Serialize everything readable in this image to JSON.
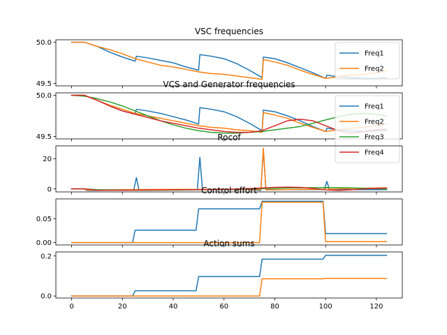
{
  "chart_data": [
    {
      "type": "line",
      "title": "VSC frequencies",
      "xlim": [
        -6.2,
        130.2
      ],
      "ylim": [
        49.47,
        50.03
      ],
      "yticks": [
        49.5,
        50.0
      ],
      "ytick_labels": [
        "49.5",
        "50.0"
      ],
      "legend": "right",
      "series": [
        {
          "name": "Freq1",
          "color": "#1f77b4",
          "x": [
            0,
            5,
            10,
            15,
            20,
            25,
            25.5,
            30,
            35,
            40,
            45,
            50,
            50.5,
            55,
            60,
            65,
            70,
            75,
            75.5,
            80,
            85,
            90,
            95,
            100,
            100.5,
            105,
            110,
            115,
            120,
            124
          ],
          "y": [
            50.0,
            50.0,
            49.95,
            49.88,
            49.82,
            49.77,
            49.83,
            49.81,
            49.78,
            49.75,
            49.7,
            49.66,
            49.85,
            49.83,
            49.8,
            49.74,
            49.66,
            49.57,
            49.82,
            49.8,
            49.75,
            49.69,
            49.63,
            49.56,
            49.6,
            49.58,
            49.57,
            49.56,
            49.56,
            49.57
          ]
        },
        {
          "name": "Freq2",
          "color": "#ff7f0e",
          "x": [
            0,
            5,
            10,
            15,
            20,
            25,
            30,
            35,
            40,
            45,
            50,
            55,
            60,
            65,
            70,
            75,
            75.5,
            80,
            85,
            90,
            95,
            100,
            105,
            110,
            115,
            120,
            124
          ],
          "y": [
            50.0,
            50.0,
            49.95,
            49.91,
            49.86,
            49.8,
            49.76,
            49.72,
            49.7,
            49.67,
            49.64,
            49.62,
            49.61,
            49.59,
            49.57,
            49.55,
            49.79,
            49.76,
            49.72,
            49.66,
            49.61,
            49.56,
            49.58,
            49.6,
            49.61,
            49.63,
            49.65
          ]
        }
      ]
    },
    {
      "type": "line",
      "title": "VCS and Generator frequencies",
      "xlim": [
        -6.2,
        130.2
      ],
      "ylim": [
        49.47,
        50.03
      ],
      "yticks": [
        49.5,
        50.0
      ],
      "ytick_labels": [
        "49.5",
        "50.0"
      ],
      "legend": "right",
      "series": [
        {
          "name": "Freq1",
          "color": "#1f77b4",
          "x": [
            0,
            5,
            10,
            15,
            20,
            25,
            25.5,
            30,
            35,
            40,
            45,
            50,
            50.5,
            55,
            60,
            65,
            70,
            75,
            75.5,
            80,
            85,
            90,
            95,
            100,
            100.5,
            105,
            110,
            115,
            120,
            124
          ],
          "y": [
            50.0,
            50.0,
            49.94,
            49.87,
            49.81,
            49.77,
            49.83,
            49.81,
            49.78,
            49.74,
            49.7,
            49.65,
            49.85,
            49.83,
            49.8,
            49.74,
            49.66,
            49.57,
            49.82,
            49.8,
            49.75,
            49.69,
            49.62,
            49.56,
            49.6,
            49.58,
            49.57,
            49.56,
            49.57,
            49.57
          ]
        },
        {
          "name": "Freq2",
          "color": "#ff7f0e",
          "x": [
            0,
            5,
            10,
            15,
            20,
            25,
            30,
            35,
            40,
            45,
            50,
            55,
            60,
            65,
            70,
            75,
            75.5,
            80,
            85,
            90,
            95,
            100,
            105,
            110,
            115,
            120,
            124
          ],
          "y": [
            50.0,
            50.0,
            49.94,
            49.88,
            49.83,
            49.78,
            49.75,
            49.72,
            49.69,
            49.66,
            49.63,
            49.61,
            49.6,
            49.58,
            49.57,
            49.55,
            49.79,
            49.76,
            49.72,
            49.66,
            49.61,
            49.56,
            49.58,
            49.6,
            49.61,
            49.63,
            49.65
          ]
        },
        {
          "name": "Freq3",
          "color": "#2ca02c",
          "x": [
            0,
            5,
            10,
            15,
            20,
            25,
            30,
            35,
            40,
            45,
            50,
            55,
            60,
            65,
            70,
            75,
            80,
            85,
            90,
            95,
            100,
            105,
            110,
            115,
            120,
            124
          ],
          "y": [
            50.0,
            49.99,
            49.96,
            49.92,
            49.87,
            49.81,
            49.75,
            49.69,
            49.64,
            49.6,
            49.57,
            49.55,
            49.54,
            49.54,
            49.55,
            49.56,
            49.58,
            49.6,
            49.62,
            49.66,
            49.7,
            49.74,
            49.77,
            49.78,
            49.77,
            49.75
          ]
        },
        {
          "name": "Freq4",
          "color": "#d62728",
          "x": [
            0,
            5,
            10,
            15,
            20,
            25,
            30,
            35,
            40,
            45,
            50,
            55,
            60,
            65,
            70,
            75,
            80,
            85,
            90,
            95,
            100,
            105,
            110,
            115,
            120,
            124
          ],
          "y": [
            50.0,
            50.0,
            49.94,
            49.87,
            49.81,
            49.77,
            49.73,
            49.69,
            49.66,
            49.63,
            49.6,
            49.58,
            49.56,
            49.55,
            49.55,
            49.57,
            49.63,
            49.69,
            49.71,
            49.69,
            49.63,
            49.57,
            49.54,
            49.56,
            49.58,
            49.59
          ]
        }
      ]
    },
    {
      "type": "line",
      "title": "Rocof",
      "xlim": [
        -6.2,
        130.2
      ],
      "ylim": [
        -2.0,
        28.5
      ],
      "yticks": [
        0,
        20
      ],
      "ytick_labels": [
        "0",
        "20"
      ],
      "series": [
        {
          "name": "",
          "color": "#1f77b4",
          "x": [
            0,
            5,
            6,
            10,
            20,
            24.5,
            25.5,
            26.5,
            30,
            40,
            49.5,
            50.5,
            51.5,
            60,
            70,
            74.5,
            75.5,
            76.5,
            80,
            90,
            99.5,
            100.5,
            101.5,
            110,
            124
          ],
          "y": [
            0,
            0,
            -1,
            -1,
            -0.5,
            -0.5,
            7.5,
            -0.5,
            -0.5,
            -0.5,
            -0.5,
            21,
            -0.5,
            -0.5,
            -0.5,
            -1,
            26,
            -0.5,
            -0.5,
            -0.5,
            -0.5,
            5,
            -0.5,
            -0.5,
            -0.5
          ]
        },
        {
          "name": "",
          "color": "#ff7f0e",
          "x": [
            0,
            5,
            6,
            10,
            20,
            30,
            40,
            50,
            60,
            70,
            74.5,
            75.5,
            76.5,
            80,
            90,
            99.5,
            100.5,
            101.5,
            110,
            124
          ],
          "y": [
            0,
            0,
            -0.8,
            -0.8,
            -0.5,
            -0.4,
            -0.3,
            -0.3,
            -0.3,
            -0.4,
            -0.5,
            27,
            -0.6,
            -0.6,
            -0.3,
            -0.3,
            1,
            -0.2,
            0.3,
            0.7
          ]
        },
        {
          "name": "",
          "color": "#2ca02c",
          "x": [
            0,
            5,
            10,
            20,
            30,
            40,
            50,
            60,
            70,
            80,
            90,
            100,
            110,
            120,
            124
          ],
          "y": [
            0,
            0,
            -0.5,
            -0.8,
            -0.9,
            -0.8,
            -0.6,
            -0.3,
            0,
            0.4,
            0.7,
            0.9,
            0.7,
            0.2,
            -0.2
          ]
        },
        {
          "name": "",
          "color": "#d62728",
          "x": [
            0,
            5,
            10,
            20,
            30,
            40,
            50,
            60,
            70,
            80,
            85,
            90,
            95,
            100,
            105,
            110,
            115,
            124
          ],
          "y": [
            0,
            0,
            -0.9,
            -0.9,
            -0.7,
            -0.6,
            -0.5,
            -0.3,
            0.2,
            1.0,
            1.2,
            1.0,
            0.3,
            -0.6,
            -1.0,
            -0.6,
            0.0,
            0.6
          ]
        }
      ]
    },
    {
      "type": "line",
      "title": "Control effort",
      "xlim": [
        -6.2,
        130.2
      ],
      "ylim": [
        -0.005,
        0.092
      ],
      "yticks": [
        0.0,
        0.05
      ],
      "ytick_labels": [
        "0.00",
        "0.05"
      ],
      "series": [
        {
          "name": "",
          "color": "#1f77b4",
          "x": [
            0,
            24,
            25,
            49,
            50,
            74,
            75,
            99,
            100,
            124
          ],
          "y": [
            0,
            0,
            0.026,
            0.026,
            0.071,
            0.071,
            0.087,
            0.087,
            0.019,
            0.019
          ]
        },
        {
          "name": "",
          "color": "#ff7f0e",
          "x": [
            0,
            74,
            75,
            99,
            100,
            124
          ],
          "y": [
            0,
            0,
            0.085,
            0.085,
            0.002,
            0.002
          ]
        }
      ]
    },
    {
      "type": "line",
      "title": "Action sums",
      "xlim": [
        -6.2,
        130.2
      ],
      "ylim": [
        -0.01,
        0.22
      ],
      "yticks": [
        0.0,
        0.2
      ],
      "ytick_labels": [
        "0.0",
        "0.2"
      ],
      "xticks": [
        0,
        20,
        40,
        60,
        80,
        100,
        120
      ],
      "xtick_labels": [
        "0",
        "20",
        "40",
        "60",
        "80",
        "100",
        "120"
      ],
      "series": [
        {
          "name": "",
          "color": "#1f77b4",
          "x": [
            0,
            24,
            25,
            49,
            50,
            74,
            75,
            99,
            100,
            124
          ],
          "y": [
            0,
            0,
            0.026,
            0.026,
            0.097,
            0.097,
            0.184,
            0.184,
            0.203,
            0.203
          ]
        },
        {
          "name": "",
          "color": "#ff7f0e",
          "x": [
            0,
            74,
            75,
            99,
            100,
            124
          ],
          "y": [
            0,
            0,
            0.086,
            0.086,
            0.088,
            0.088
          ]
        }
      ]
    }
  ]
}
